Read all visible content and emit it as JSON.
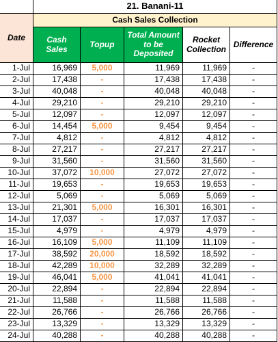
{
  "table": {
    "title": "21. Banani-11",
    "subtitle": "Cash Sales Collection",
    "columns": [
      "Date",
      "Cash Sales",
      "Topup",
      "Total Amount to be Deposited",
      "Rocket Collection",
      "Difference"
    ],
    "rows": [
      [
        "1-Jul",
        "16,969",
        "5,000",
        "11,969",
        "11,969",
        "-"
      ],
      [
        "2-Jul",
        "17,438",
        "-",
        "17,438",
        "17,438",
        "-"
      ],
      [
        "3-Jul",
        "40,048",
        "-",
        "40,048",
        "40,048",
        "-"
      ],
      [
        "4-Jul",
        "29,210",
        "-",
        "29,210",
        "29,210",
        "-"
      ],
      [
        "5-Jul",
        "12,097",
        "-",
        "12,097",
        "12,097",
        "-"
      ],
      [
        "6-Jul",
        "14,454",
        "5,000",
        "9,454",
        "9,454",
        "-"
      ],
      [
        "7-Jul",
        "4,812",
        "-",
        "4,812",
        "4,812",
        "-"
      ],
      [
        "8-Jul",
        "27,217",
        "-",
        "27,217",
        "27,217",
        "-"
      ],
      [
        "9-Jul",
        "31,560",
        "-",
        "31,560",
        "31,560",
        "-"
      ],
      [
        "10-Jul",
        "37,072",
        "10,000",
        "27,072",
        "27,072",
        "-"
      ],
      [
        "11-Jul",
        "19,653",
        "-",
        "19,653",
        "19,653",
        "-"
      ],
      [
        "12-Jul",
        "5,069",
        "-",
        "5,069",
        "5,069",
        "-"
      ],
      [
        "13-Jul",
        "21,301",
        "5,000",
        "16,301",
        "16,301",
        "-"
      ],
      [
        "14-Jul",
        "17,037",
        "-",
        "17,037",
        "17,037",
        "-"
      ],
      [
        "15-Jul",
        "4,979",
        "-",
        "4,979",
        "4,979",
        "-"
      ],
      [
        "16-Jul",
        "16,109",
        "5,000",
        "11,109",
        "11,109",
        "-"
      ],
      [
        "17-Jul",
        "38,592",
        "20,000",
        "18,592",
        "18,592",
        "-"
      ],
      [
        "18-Jul",
        "42,289",
        "10,000",
        "32,289",
        "32,289",
        "-"
      ],
      [
        "19-Jul",
        "46,041",
        "5,000",
        "41,041",
        "41,041",
        "-"
      ],
      [
        "20-Jul",
        "22,894",
        "-",
        "22,894",
        "22,894",
        "-"
      ],
      [
        "21-Jul",
        "11,588",
        "-",
        "11,588",
        "11,588",
        "-"
      ],
      [
        "22-Jul",
        "26,766",
        "-",
        "26,766",
        "26,766",
        "-"
      ],
      [
        "23-Jul",
        "13,329",
        "-",
        "13,329",
        "13,329",
        "-"
      ],
      [
        "24-Jul",
        "40,288",
        "-",
        "40,288",
        "40,288",
        "-"
      ]
    ]
  }
}
